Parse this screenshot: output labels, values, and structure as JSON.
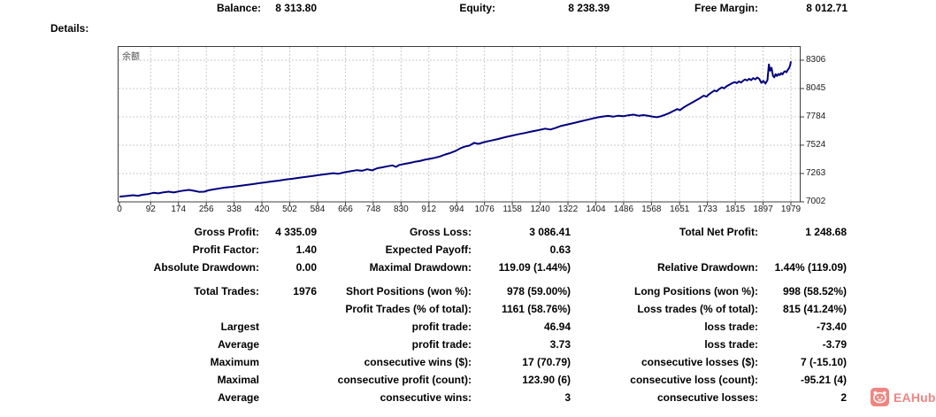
{
  "header": {
    "balance_label": "Balance:",
    "balance_value": "8 313.80",
    "equity_label": "Equity:",
    "equity_value": "8 238.39",
    "free_margin_label": "Free Margin:",
    "free_margin_value": "8 012.71"
  },
  "details_label": "Details:",
  "chart_data": {
    "type": "line",
    "title": "余额",
    "series_name": "余额 (Balance)",
    "x_ticks": [
      0,
      92,
      174,
      256,
      338,
      420,
      502,
      584,
      666,
      748,
      830,
      912,
      994,
      1076,
      1158,
      1240,
      1322,
      1404,
      1486,
      1568,
      1651,
      1733,
      1815,
      1897,
      1979
    ],
    "y_ticks": [
      8306,
      8045,
      7784,
      7524,
      7263,
      7002
    ],
    "xlim": [
      0,
      2008
    ],
    "ylim": [
      7002,
      8306
    ],
    "grid": true,
    "legend_position": "none",
    "line_color": "#00007e",
    "grid_color": "#c9c9c9",
    "border_color": "#3c3c3c",
    "points": [
      [
        0,
        7050
      ],
      [
        20,
        7056
      ],
      [
        40,
        7063
      ],
      [
        55,
        7058
      ],
      [
        70,
        7068
      ],
      [
        85,
        7074
      ],
      [
        100,
        7085
      ],
      [
        115,
        7080
      ],
      [
        130,
        7090
      ],
      [
        145,
        7096
      ],
      [
        160,
        7088
      ],
      [
        175,
        7098
      ],
      [
        190,
        7106
      ],
      [
        205,
        7112
      ],
      [
        220,
        7104
      ],
      [
        235,
        7094
      ],
      [
        250,
        7096
      ],
      [
        265,
        7110
      ],
      [
        280,
        7118
      ],
      [
        295,
        7126
      ],
      [
        310,
        7133
      ],
      [
        330,
        7140
      ],
      [
        350,
        7148
      ],
      [
        370,
        7156
      ],
      [
        390,
        7164
      ],
      [
        410,
        7173
      ],
      [
        430,
        7181
      ],
      [
        450,
        7190
      ],
      [
        470,
        7198
      ],
      [
        490,
        7207
      ],
      [
        510,
        7215
      ],
      [
        530,
        7224
      ],
      [
        550,
        7232
      ],
      [
        570,
        7241
      ],
      [
        590,
        7250
      ],
      [
        610,
        7258
      ],
      [
        630,
        7266
      ],
      [
        645,
        7260
      ],
      [
        660,
        7272
      ],
      [
        680,
        7283
      ],
      [
        700,
        7294
      ],
      [
        715,
        7288
      ],
      [
        730,
        7302
      ],
      [
        745,
        7292
      ],
      [
        760,
        7312
      ],
      [
        775,
        7320
      ],
      [
        790,
        7330
      ],
      [
        805,
        7338
      ],
      [
        815,
        7324
      ],
      [
        825,
        7342
      ],
      [
        840,
        7352
      ],
      [
        855,
        7360
      ],
      [
        870,
        7370
      ],
      [
        885,
        7378
      ],
      [
        900,
        7390
      ],
      [
        915,
        7398
      ],
      [
        930,
        7408
      ],
      [
        945,
        7420
      ],
      [
        960,
        7438
      ],
      [
        975,
        7452
      ],
      [
        990,
        7470
      ],
      [
        1005,
        7495
      ],
      [
        1017,
        7510
      ],
      [
        1032,
        7520
      ],
      [
        1045,
        7545
      ],
      [
        1058,
        7536
      ],
      [
        1075,
        7552
      ],
      [
        1095,
        7566
      ],
      [
        1115,
        7580
      ],
      [
        1135,
        7596
      ],
      [
        1155,
        7610
      ],
      [
        1175,
        7624
      ],
      [
        1195,
        7636
      ],
      [
        1215,
        7650
      ],
      [
        1235,
        7662
      ],
      [
        1255,
        7676
      ],
      [
        1270,
        7668
      ],
      [
        1285,
        7682
      ],
      [
        1300,
        7700
      ],
      [
        1320,
        7714
      ],
      [
        1340,
        7728
      ],
      [
        1360,
        7744
      ],
      [
        1380,
        7758
      ],
      [
        1395,
        7770
      ],
      [
        1410,
        7780
      ],
      [
        1425,
        7788
      ],
      [
        1440,
        7793
      ],
      [
        1455,
        7786
      ],
      [
        1470,
        7795
      ],
      [
        1485,
        7790
      ],
      [
        1500,
        7799
      ],
      [
        1515,
        7805
      ],
      [
        1530,
        7795
      ],
      [
        1545,
        7801
      ],
      [
        1560,
        7793
      ],
      [
        1572,
        7786
      ],
      [
        1584,
        7781
      ],
      [
        1596,
        7790
      ],
      [
        1608,
        7803
      ],
      [
        1620,
        7819
      ],
      [
        1632,
        7837
      ],
      [
        1644,
        7856
      ],
      [
        1652,
        7846
      ],
      [
        1662,
        7869
      ],
      [
        1672,
        7889
      ],
      [
        1682,
        7906
      ],
      [
        1692,
        7923
      ],
      [
        1702,
        7941
      ],
      [
        1712,
        7959
      ],
      [
        1722,
        7979
      ],
      [
        1730,
        7971
      ],
      [
        1738,
        7993
      ],
      [
        1746,
        8011
      ],
      [
        1754,
        8027
      ],
      [
        1760,
        8019
      ],
      [
        1768,
        8041
      ],
      [
        1776,
        8057
      ],
      [
        1782,
        8047
      ],
      [
        1790,
        8067
      ],
      [
        1798,
        8081
      ],
      [
        1806,
        8095
      ],
      [
        1814,
        8105
      ],
      [
        1820,
        8095
      ],
      [
        1826,
        8111
      ],
      [
        1832,
        8101
      ],
      [
        1838,
        8117
      ],
      [
        1844,
        8129
      ],
      [
        1850,
        8119
      ],
      [
        1856,
        8135
      ],
      [
        1862,
        8123
      ],
      [
        1868,
        8141
      ],
      [
        1874,
        8129
      ],
      [
        1880,
        8147
      ],
      [
        1886,
        8133
      ],
      [
        1892,
        8097
      ],
      [
        1898,
        8115
      ],
      [
        1904,
        8091
      ],
      [
        1910,
        8123
      ],
      [
        1914,
        8268
      ],
      [
        1918,
        8209
      ],
      [
        1922,
        8237
      ],
      [
        1926,
        8163
      ],
      [
        1930,
        8149
      ],
      [
        1934,
        8177
      ],
      [
        1938,
        8161
      ],
      [
        1942,
        8179
      ],
      [
        1946,
        8169
      ],
      [
        1950,
        8187
      ],
      [
        1954,
        8175
      ],
      [
        1958,
        8195
      ],
      [
        1962,
        8205
      ],
      [
        1966,
        8195
      ],
      [
        1970,
        8217
      ],
      [
        1974,
        8235
      ],
      [
        1977,
        8261
      ],
      [
        1979,
        8295
      ]
    ]
  },
  "stats": {
    "rows": [
      {
        "c1l": "Gross Profit:",
        "c1v": "4 335.09",
        "c2l": "Gross Loss:",
        "c2v": "3 086.41",
        "c3l": "Total Net Profit:",
        "c3v": "1 248.68"
      },
      {
        "c1l": "Profit Factor:",
        "c1v": "1.40",
        "c2l": "Expected Payoff:",
        "c2v": "0.63",
        "c3l": "",
        "c3v": ""
      },
      {
        "c1l": "Absolute Drawdown:",
        "c1v": "0.00",
        "c2l": "Maximal Drawdown:",
        "c2v": "119.09 (1.44%)",
        "c3l": "Relative Drawdown:",
        "c3v": "1.44% (119.09)"
      },
      {
        "c1l": "Total Trades:",
        "c1v": "1976",
        "c2l": "Short Positions (won %):",
        "c2v": "978 (59.00%)",
        "c3l": "Long Positions (won %):",
        "c3v": "998 (58.52%)"
      },
      {
        "c1l": "",
        "c1v": "",
        "c2l": "Profit Trades (% of total):",
        "c2v": "1161 (58.76%)",
        "c3l": "Loss trades (% of total):",
        "c3v": "815 (41.24%)"
      },
      {
        "c1l": "Largest",
        "c1v": "",
        "c2l": "profit trade:",
        "c2v": "46.94",
        "c3l": "loss trade:",
        "c3v": "-73.40"
      },
      {
        "c1l": "Average",
        "c1v": "",
        "c2l": "profit trade:",
        "c2v": "3.73",
        "c3l": "loss trade:",
        "c3v": "-3.79"
      },
      {
        "c1l": "Maximum",
        "c1v": "",
        "c2l": "consecutive wins ($):",
        "c2v": "17 (70.79)",
        "c3l": "consecutive losses ($):",
        "c3v": "7 (-15.10)"
      },
      {
        "c1l": "Maximal",
        "c1v": "",
        "c2l": "consecutive profit (count):",
        "c2v": "123.90 (6)",
        "c3l": "consecutive loss (count):",
        "c3v": "-95.21 (4)"
      },
      {
        "c1l": "Average",
        "c1v": "",
        "c2l": "consecutive wins:",
        "c2v": "3",
        "c3l": "consecutive losses:",
        "c3v": "2"
      }
    ]
  },
  "watermark": {
    "text": "EAHub",
    "color": "#f08580"
  }
}
